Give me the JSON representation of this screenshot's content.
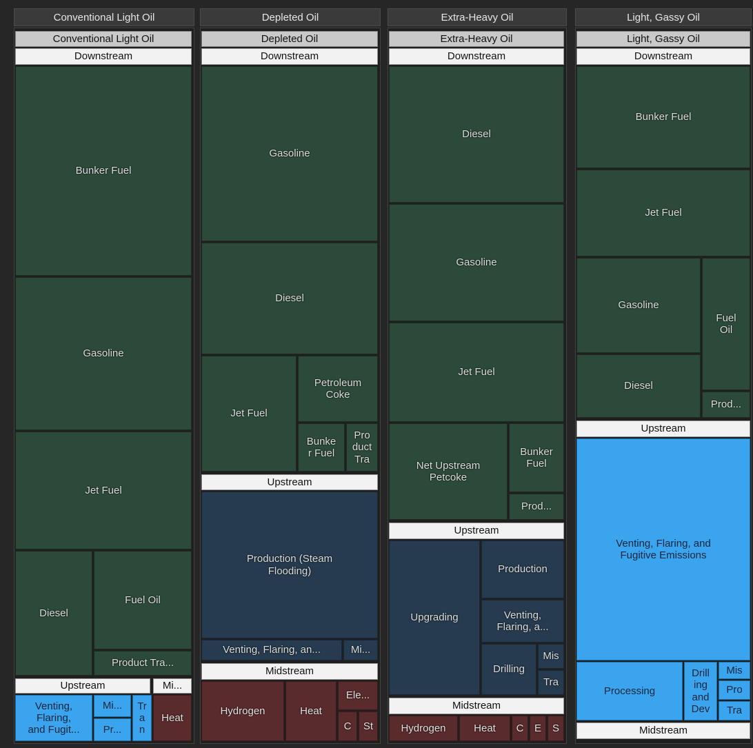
{
  "columns": [
    {
      "title": "Conventional Light Oil",
      "cells": [
        "Conventional Light Oil",
        "Downstream",
        "Bunker Fuel",
        "Gasoline",
        "Jet Fuel",
        "Diesel",
        "Fuel Oil",
        "Product Tra...",
        "Upstream",
        "Mi...",
        "Venting,\nFlaring,\nand Fugit...",
        "Mi...",
        "Pr...",
        "Tr\na\nn",
        "Heat"
      ]
    },
    {
      "title": "Depleted Oil",
      "cells": [
        "Depleted Oil",
        "Downstream",
        "Gasoline",
        "Diesel",
        "Jet Fuel",
        "Petroleum\nCoke",
        "Bunke\nr Fuel",
        "Pro\nduct\nTra",
        "Upstream",
        "Production (Steam\nFlooding)",
        "Venting, Flaring, an...",
        "Mi...",
        "Midstream",
        "Hydrogen",
        "Heat",
        "Ele...",
        "C",
        "St"
      ]
    },
    {
      "title": "Extra-Heavy Oil",
      "cells": [
        "Extra-Heavy Oil",
        "Downstream",
        "Diesel",
        "Gasoline",
        "Jet Fuel",
        "Net Upstream\nPetcoke",
        "Bunker\nFuel",
        "Prod...",
        "Upstream",
        "Upgrading",
        "Production",
        "Venting,\nFlaring, a...",
        "Drilling",
        "Mis",
        "Tra",
        "Midstream",
        "Hydrogen",
        "Heat",
        "C",
        "E",
        "S"
      ]
    },
    {
      "title": "Light, Gassy Oil",
      "cells": [
        "Light, Gassy Oil",
        "Downstream",
        "Bunker Fuel",
        "Jet Fuel",
        "Gasoline",
        "Diesel",
        "Fuel\nOil",
        "Prod...",
        "Upstream",
        "Venting, Flaring, and\nFugitive Emissions",
        "Processing",
        "Drill\ning\nand\nDev",
        "Mis",
        "Pro",
        "Tra",
        "Midstream"
      ]
    }
  ]
}
